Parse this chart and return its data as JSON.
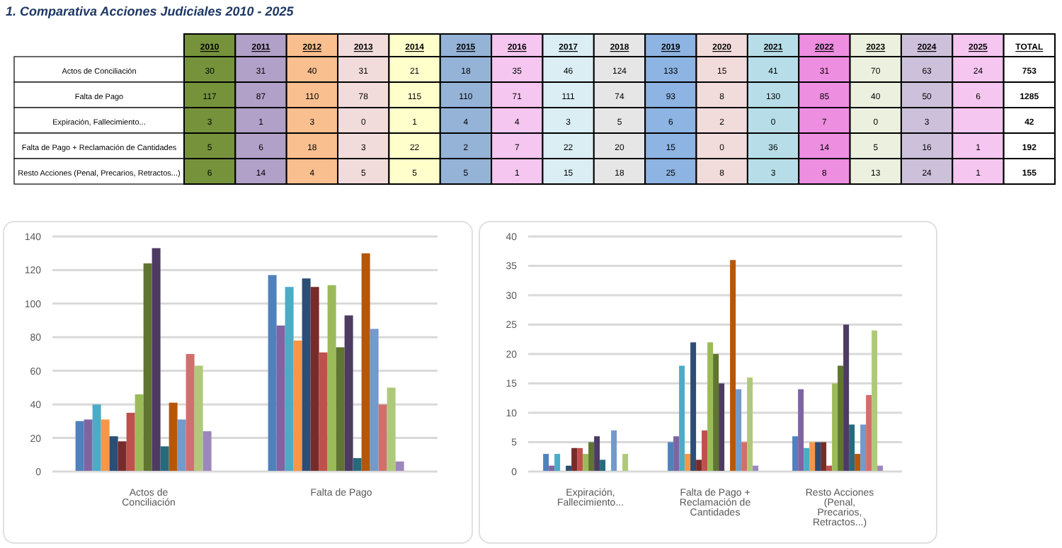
{
  "chart_data": [
    {
      "type": "heatmap",
      "data_labels": true,
      "title": "1. Comparativa Acciones Judiciales 2010 - 2025",
      "categories": [
        "2010",
        "2011",
        "2012",
        "2013",
        "2014",
        "2015",
        "2016",
        "2017",
        "2018",
        "2019",
        "2020",
        "2021",
        "2022",
        "2023",
        "2024",
        "2025",
        "TOTAL"
      ],
      "y_categories": [
        "Actos de Conciliación",
        "Falta de Pago",
        "Expiración, Fallecimiento...",
        "Falta de Pago + Reclamación de Cantidades",
        "Resto Acciones  (Penal, Precarios, Retractos...)"
      ],
      "colors": [
        "#76933c",
        "#b1a0c7",
        "#fabf8f",
        "#f2dcdb",
        "#ffffcc",
        "#95b3d7",
        "#f5c6f0",
        "#daeef3",
        "#e7e6e6",
        "#8db4e2",
        "#f2dcdb",
        "#b7dee8",
        "#ee8ee0",
        "#ebf1de",
        "#ccc0da",
        "#f5c6f0",
        "#ffffff"
      ],
      "cells": [
        [
          30,
          31,
          40,
          31,
          21,
          18,
          35,
          46,
          124,
          133,
          15,
          41,
          31,
          70,
          63,
          24,
          753
        ],
        [
          117,
          87,
          110,
          78,
          115,
          110,
          71,
          111,
          74,
          93,
          8,
          130,
          85,
          40,
          50,
          6,
          1285
        ],
        [
          3,
          1,
          3,
          0,
          1,
          4,
          4,
          3,
          5,
          6,
          2,
          0,
          7,
          0,
          3,
          null,
          42
        ],
        [
          5,
          6,
          18,
          3,
          22,
          2,
          7,
          22,
          20,
          15,
          0,
          36,
          14,
          5,
          16,
          1,
          192
        ],
        [
          6,
          14,
          4,
          5,
          5,
          5,
          1,
          15,
          18,
          25,
          8,
          3,
          8,
          13,
          24,
          1,
          155
        ]
      ]
    },
    {
      "type": "bar",
      "categories": [
        "Actos de Conciliación",
        "Falta de Pago"
      ],
      "ylim": [
        0,
        140
      ],
      "yticks": [
        0,
        20,
        40,
        60,
        80,
        100,
        120,
        140
      ],
      "grid": "y",
      "series": [
        {
          "color": "#4f81bd",
          "values": [
            30,
            117
          ]
        },
        {
          "color": "#8064a2",
          "values": [
            31,
            87
          ]
        },
        {
          "color": "#4bacc6",
          "values": [
            40,
            110
          ]
        },
        {
          "color": "#f79646",
          "values": [
            31,
            78
          ]
        },
        {
          "color": "#2c4d75",
          "values": [
            21,
            115
          ]
        },
        {
          "color": "#772c2a",
          "values": [
            18,
            110
          ]
        },
        {
          "color": "#c0504d",
          "values": [
            35,
            71
          ]
        },
        {
          "color": "#9bbb59",
          "values": [
            46,
            111
          ]
        },
        {
          "color": "#5f7530",
          "values": [
            124,
            74
          ]
        },
        {
          "color": "#4d3b62",
          "values": [
            133,
            93
          ]
        },
        {
          "color": "#276a7c",
          "values": [
            15,
            8
          ]
        },
        {
          "color": "#b65708",
          "values": [
            41,
            130
          ]
        },
        {
          "color": "#729aca",
          "values": [
            31,
            85
          ]
        },
        {
          "color": "#d16f6c",
          "values": [
            70,
            40
          ]
        },
        {
          "color": "#afc97a",
          "values": [
            63,
            50
          ]
        },
        {
          "color": "#9c87bd",
          "values": [
            24,
            6
          ]
        }
      ]
    },
    {
      "type": "bar",
      "categories": [
        "Expiración, Fallecimiento...",
        "Falta de Pago + Reclamación de Cantidades",
        "Resto Acciones  (Penal, Precarios, Retractos...)"
      ],
      "ylim": [
        0,
        40
      ],
      "yticks": [
        0,
        5,
        10,
        15,
        20,
        25,
        30,
        35,
        40
      ],
      "grid": "y",
      "series": [
        {
          "color": "#4f81bd",
          "values": [
            3,
            5,
            6
          ]
        },
        {
          "color": "#8064a2",
          "values": [
            1,
            6,
            14
          ]
        },
        {
          "color": "#4bacc6",
          "values": [
            3,
            18,
            4
          ]
        },
        {
          "color": "#f79646",
          "values": [
            0,
            3,
            5
          ]
        },
        {
          "color": "#2c4d75",
          "values": [
            1,
            22,
            5
          ]
        },
        {
          "color": "#772c2a",
          "values": [
            4,
            2,
            5
          ]
        },
        {
          "color": "#c0504d",
          "values": [
            4,
            7,
            1
          ]
        },
        {
          "color": "#9bbb59",
          "values": [
            3,
            22,
            15
          ]
        },
        {
          "color": "#5f7530",
          "values": [
            5,
            20,
            18
          ]
        },
        {
          "color": "#4d3b62",
          "values": [
            6,
            15,
            25
          ]
        },
        {
          "color": "#276a7c",
          "values": [
            2,
            0,
            8
          ]
        },
        {
          "color": "#b65708",
          "values": [
            0,
            36,
            3
          ]
        },
        {
          "color": "#729aca",
          "values": [
            7,
            14,
            8
          ]
        },
        {
          "color": "#d16f6c",
          "values": [
            0,
            5,
            13
          ]
        },
        {
          "color": "#afc97a",
          "values": [
            3,
            16,
            24
          ]
        },
        {
          "color": "#9c87bd",
          "values": [
            null,
            1,
            1
          ]
        }
      ]
    }
  ]
}
